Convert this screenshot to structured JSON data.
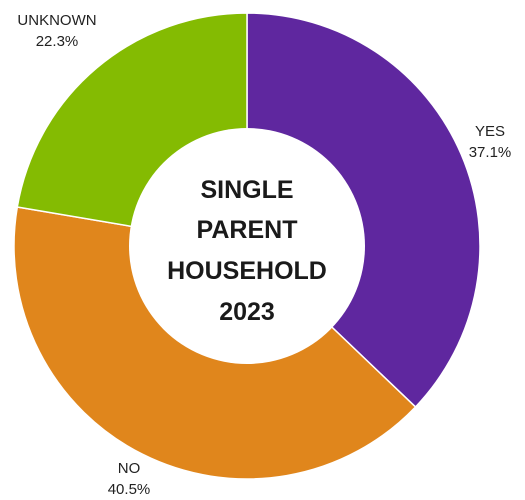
{
  "chart_data": {
    "type": "pie",
    "donut": true,
    "center_title": [
      "SINGLE",
      "PARENT",
      "HOUSEHOLD",
      "2023"
    ],
    "slices": [
      {
        "label": "YES",
        "value": 37.1,
        "value_label": "37.1%",
        "color": "#5f279f"
      },
      {
        "label": "NO",
        "value": 40.5,
        "value_label": "40.5%",
        "color": "#e0861c"
      },
      {
        "label": "UNKNOWN",
        "value": 22.3,
        "value_label": "22.3%",
        "color": "#84bb02"
      }
    ],
    "legend": "none"
  }
}
